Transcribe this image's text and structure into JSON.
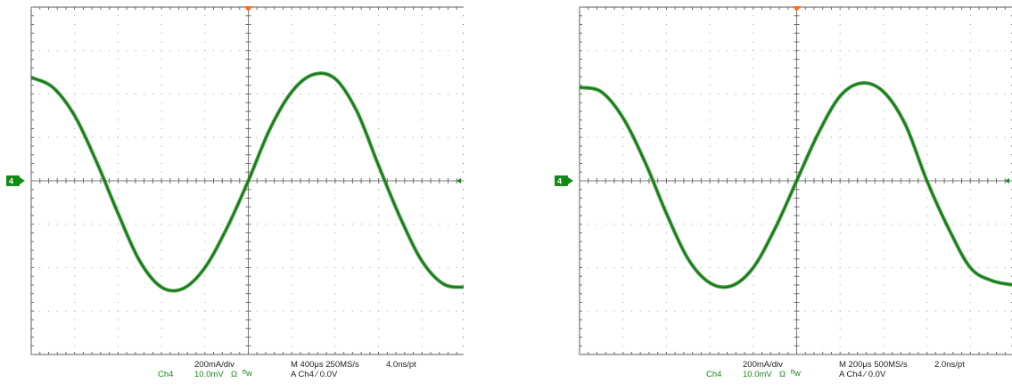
{
  "colors": {
    "trace": "#1f8a1f",
    "grid": "#5a5a5a",
    "trigger_marker": "#ff6a1a",
    "channel_label": "#178a17"
  },
  "chart_data": [
    {
      "type": "line",
      "title": "",
      "xlabel": "",
      "ylabel": "",
      "divisions": {
        "x": 10,
        "y": 8
      },
      "xlim": [
        -5,
        5
      ],
      "ylim": [
        -4,
        4
      ],
      "grid": true,
      "ground_marker": "4",
      "series": [
        {
          "x": [
            -5,
            -4.5,
            -4,
            -3.5,
            -3,
            -2.5,
            -2,
            -1.5,
            -1,
            -0.5,
            0,
            0.5,
            1,
            1.5,
            2,
            2.5,
            3,
            3.5,
            4,
            4.5,
            5
          ],
          "y": [
            2.38,
            2.15,
            1.5,
            0.45,
            -0.75,
            -1.85,
            -2.45,
            -2.48,
            -2.0,
            -1.1,
            0.0,
            1.2,
            2.05,
            2.45,
            2.35,
            1.6,
            0.35,
            -0.85,
            -1.85,
            -2.38,
            -2.45
          ]
        }
      ],
      "readout": {
        "scale": "200mA/div",
        "channel": "Ch4",
        "offset": "10.0mV",
        "ohm": "Ω",
        "bw": "ᴮw",
        "timebase": "M 400μs 250MS/s",
        "trigger": "A  Ch4  ⁄  0.0V",
        "resolution": "4.0ns/pt"
      }
    },
    {
      "type": "line",
      "title": "",
      "xlabel": "",
      "ylabel": "",
      "divisions": {
        "x": 10,
        "y": 8
      },
      "xlim": [
        -5,
        5
      ],
      "ylim": [
        -4,
        4
      ],
      "grid": true,
      "ground_marker": "4",
      "series": [
        {
          "x": [
            -5,
            -4.5,
            -4,
            -3.5,
            -3,
            -2.5,
            -2,
            -1.5,
            -1,
            -0.5,
            0,
            0.5,
            1,
            1.5,
            2,
            2.5,
            3,
            3.5,
            4,
            4.5,
            5
          ],
          "y": [
            2.15,
            2.05,
            1.45,
            0.45,
            -0.75,
            -1.8,
            -2.35,
            -2.42,
            -2.0,
            -1.1,
            0.0,
            1.1,
            1.95,
            2.25,
            2.05,
            1.3,
            0.0,
            -1.1,
            -2.0,
            -2.3,
            -2.4
          ]
        }
      ],
      "readout": {
        "scale": "200mA/div",
        "channel": "Ch4",
        "offset": "10.0mV",
        "ohm": "Ω",
        "bw": "ᴮw",
        "timebase": "M 200μs 500MS/s",
        "trigger": "A  Ch4  ⁄  0.0V",
        "resolution": "2.0ns/pt"
      }
    }
  ]
}
